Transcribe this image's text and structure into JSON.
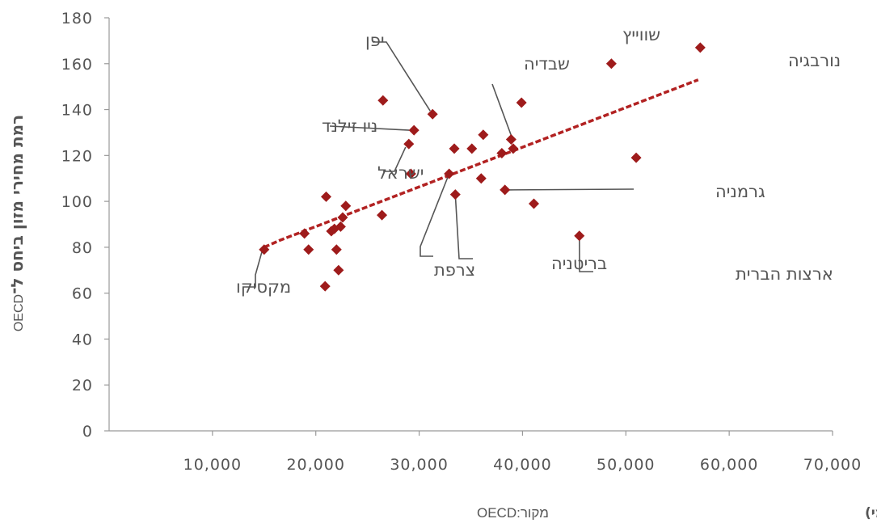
{
  "chart_data": {
    "type": "scatter",
    "xlabel": "הכנסה לנפש (דולרים, מותאמת לכוח הקנייה המקומי)",
    "ylabel": "רמת מחירי מזון ביחס ל־",
    "ylabel_prefix": "OECD",
    "source_label": "מקור:",
    "source_value": "OECD",
    "xlim": [
      0,
      70000
    ],
    "ylim": [
      0,
      180
    ],
    "x_ticks": [
      10000,
      20000,
      30000,
      40000,
      50000,
      60000,
      70000
    ],
    "x_tick_labels": [
      "10,000",
      "20,000",
      "30,000",
      "40,000",
      "50,000",
      "60,000",
      "70,000"
    ],
    "y_ticks": [
      0,
      20,
      40,
      60,
      80,
      100,
      120,
      140,
      160,
      180
    ],
    "y_tick_labels": [
      "0",
      "20",
      "40",
      "60",
      "80",
      "100",
      "120",
      "140",
      "160",
      "180"
    ],
    "grid": false,
    "colors": {
      "points": "#9e1b1b",
      "trend": "#b22222",
      "axis": "#999999",
      "text": "#555555"
    },
    "points": [
      {
        "x": 15000,
        "y": 79,
        "label": "מקסיקו"
      },
      {
        "x": 18900,
        "y": 86
      },
      {
        "x": 19300,
        "y": 79
      },
      {
        "x": 20900,
        "y": 63
      },
      {
        "x": 21000,
        "y": 102
      },
      {
        "x": 21500,
        "y": 87
      },
      {
        "x": 21800,
        "y": 88
      },
      {
        "x": 22000,
        "y": 79
      },
      {
        "x": 22200,
        "y": 70
      },
      {
        "x": 22400,
        "y": 89
      },
      {
        "x": 22600,
        "y": 93
      },
      {
        "x": 22900,
        "y": 98
      },
      {
        "x": 26400,
        "y": 94
      },
      {
        "x": 26500,
        "y": 144
      },
      {
        "x": 29000,
        "y": 125,
        "label": "ישראל"
      },
      {
        "x": 29200,
        "y": 112
      },
      {
        "x": 29500,
        "y": 131,
        "label": "ניו זילנד"
      },
      {
        "x": 31300,
        "y": 138,
        "label": "יפן"
      },
      {
        "x": 32900,
        "y": 112,
        "label": "צרפת"
      },
      {
        "x": 33400,
        "y": 123
      },
      {
        "x": 33500,
        "y": 103,
        "label": "בריטניה"
      },
      {
        "x": 35100,
        "y": 123
      },
      {
        "x": 36000,
        "y": 110
      },
      {
        "x": 36200,
        "y": 129
      },
      {
        "x": 38000,
        "y": 121
      },
      {
        "x": 38300,
        "y": 105,
        "label": "גרמניה"
      },
      {
        "x": 38900,
        "y": 127,
        "label": "שבדיה"
      },
      {
        "x": 39100,
        "y": 123
      },
      {
        "x": 39900,
        "y": 143
      },
      {
        "x": 41100,
        "y": 99
      },
      {
        "x": 45500,
        "y": 85,
        "label": "ארצות הברית"
      },
      {
        "x": 48600,
        "y": 160,
        "label": "שווייץ"
      },
      {
        "x": 51000,
        "y": 119
      },
      {
        "x": 57200,
        "y": 167,
        "label": "נורבגיה"
      }
    ],
    "trendline": [
      {
        "x": 15000,
        "y": 80
      },
      {
        "x": 16500,
        "y": 83
      },
      {
        "x": 57000,
        "y": 153
      }
    ]
  }
}
